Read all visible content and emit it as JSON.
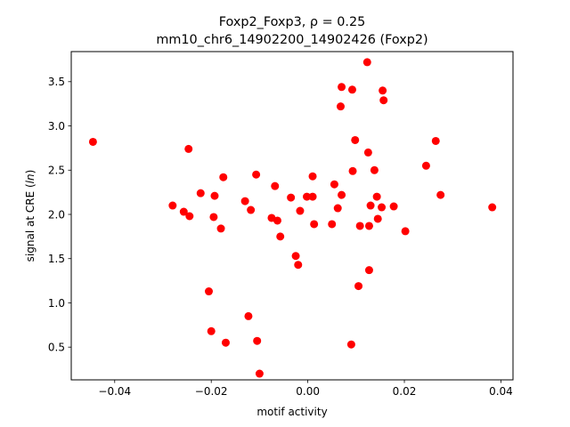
{
  "chart_data": {
    "type": "scatter",
    "title_line1": "Foxp2_Foxp3, ρ = 0.25",
    "title_line2": "mm10_chr6_14902200_14902426 (Foxp2)",
    "xlabel": "motif activity",
    "ylabel_prefix": "signal at CRE (",
    "ylabel_italic": "ln",
    "ylabel_suffix": ")",
    "xlim": [
      -0.049,
      0.0425
    ],
    "ylim": [
      0.13,
      3.84
    ],
    "xticks": [
      -0.04,
      -0.02,
      0.0,
      0.02,
      0.04
    ],
    "xtick_labels": [
      "−0.04",
      "−0.02",
      "0.00",
      "0.02",
      "0.04"
    ],
    "yticks": [
      0.5,
      1.0,
      1.5,
      2.0,
      2.5,
      3.0,
      3.5
    ],
    "ytick_labels": [
      "0.5",
      "1.0",
      "1.5",
      "2.0",
      "2.5",
      "3.0",
      "3.5"
    ],
    "marker_color": "#ff0000",
    "grid": false,
    "points": [
      {
        "x": -0.0445,
        "y": 2.82
      },
      {
        "x": -0.028,
        "y": 2.1
      },
      {
        "x": -0.0257,
        "y": 2.03
      },
      {
        "x": -0.0247,
        "y": 2.74
      },
      {
        "x": -0.0245,
        "y": 1.98
      },
      {
        "x": -0.0222,
        "y": 2.24
      },
      {
        "x": -0.0205,
        "y": 1.13
      },
      {
        "x": -0.02,
        "y": 0.68
      },
      {
        "x": -0.0195,
        "y": 1.97
      },
      {
        "x": -0.0193,
        "y": 2.21
      },
      {
        "x": -0.018,
        "y": 1.84
      },
      {
        "x": -0.0175,
        "y": 2.42
      },
      {
        "x": -0.017,
        "y": 0.55
      },
      {
        "x": -0.013,
        "y": 2.15
      },
      {
        "x": -0.0123,
        "y": 0.85
      },
      {
        "x": -0.0118,
        "y": 2.05
      },
      {
        "x": -0.0107,
        "y": 2.45
      },
      {
        "x": -0.0105,
        "y": 0.57
      },
      {
        "x": -0.01,
        "y": 0.2
      },
      {
        "x": -0.0075,
        "y": 1.96
      },
      {
        "x": -0.0068,
        "y": 2.32
      },
      {
        "x": -0.0063,
        "y": 1.93
      },
      {
        "x": -0.0057,
        "y": 1.75
      },
      {
        "x": -0.0035,
        "y": 2.19
      },
      {
        "x": -0.0025,
        "y": 1.53
      },
      {
        "x": -0.002,
        "y": 1.43
      },
      {
        "x": -0.0016,
        "y": 2.04
      },
      {
        "x": -0.0002,
        "y": 2.2
      },
      {
        "x": 0.001,
        "y": 2.2
      },
      {
        "x": 0.001,
        "y": 2.43
      },
      {
        "x": 0.0013,
        "y": 1.89
      },
      {
        "x": 0.005,
        "y": 1.89
      },
      {
        "x": 0.0055,
        "y": 2.34
      },
      {
        "x": 0.0062,
        "y": 2.07
      },
      {
        "x": 0.0068,
        "y": 3.22
      },
      {
        "x": 0.007,
        "y": 3.44
      },
      {
        "x": 0.007,
        "y": 2.22
      },
      {
        "x": 0.009,
        "y": 0.53
      },
      {
        "x": 0.0092,
        "y": 3.41
      },
      {
        "x": 0.0093,
        "y": 2.49
      },
      {
        "x": 0.0098,
        "y": 2.84
      },
      {
        "x": 0.0105,
        "y": 1.19
      },
      {
        "x": 0.0108,
        "y": 1.87
      },
      {
        "x": 0.0123,
        "y": 3.72
      },
      {
        "x": 0.0125,
        "y": 2.7
      },
      {
        "x": 0.0127,
        "y": 1.87
      },
      {
        "x": 0.0127,
        "y": 1.37
      },
      {
        "x": 0.013,
        "y": 2.1
      },
      {
        "x": 0.0138,
        "y": 2.5
      },
      {
        "x": 0.0143,
        "y": 2.2
      },
      {
        "x": 0.0145,
        "y": 1.95
      },
      {
        "x": 0.0153,
        "y": 2.08
      },
      {
        "x": 0.0155,
        "y": 3.4
      },
      {
        "x": 0.0157,
        "y": 3.29
      },
      {
        "x": 0.0178,
        "y": 2.09
      },
      {
        "x": 0.0202,
        "y": 1.81
      },
      {
        "x": 0.0245,
        "y": 2.55
      },
      {
        "x": 0.0265,
        "y": 2.83
      },
      {
        "x": 0.0275,
        "y": 2.22
      },
      {
        "x": 0.0382,
        "y": 2.08
      }
    ]
  }
}
